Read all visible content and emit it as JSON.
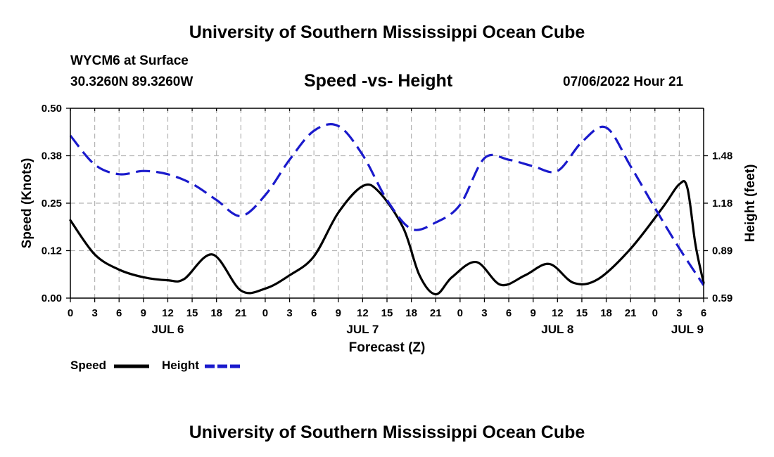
{
  "header": {
    "title": "University of Southern Mississippi Ocean Cube",
    "station": "WYCM6 at Surface",
    "coords": "30.3260N  89.3260W",
    "chart_title": "Speed -vs- Height",
    "datetime": "07/06/2022 Hour 21"
  },
  "legend": {
    "speed": "Speed",
    "height": "Height"
  },
  "footer": {
    "title": "University of Southern Mississippi Ocean Cube"
  },
  "colors": {
    "speed": "#000000",
    "height": "#1a1acc",
    "grid": "#b4b4b4"
  },
  "chart_data": {
    "type": "line",
    "title": "Speed -vs- Height",
    "xlabel": "Forecast (Z)",
    "ylabel": "Speed (Knots)",
    "y2label": "Height (feet)",
    "x_units": "hours from JUL 6 00Z",
    "xlim": [
      0,
      78
    ],
    "ylim": [
      0,
      0.5
    ],
    "y2lim": [
      0.59,
      1.77
    ],
    "x_ticks": [
      0,
      3,
      6,
      9,
      12,
      15,
      18,
      21,
      24,
      27,
      30,
      33,
      36,
      39,
      42,
      45,
      48,
      51,
      54,
      57,
      60,
      63,
      66,
      69,
      72,
      75,
      78
    ],
    "x_tick_labels": [
      "0",
      "3",
      "6",
      "9",
      "12",
      "15",
      "18",
      "21",
      "0",
      "3",
      "6",
      "9",
      "12",
      "15",
      "18",
      "21",
      "0",
      "3",
      "6",
      "9",
      "12",
      "15",
      "18",
      "21",
      "0",
      "3",
      "6"
    ],
    "date_labels": [
      {
        "x": 12,
        "label": "JUL 6"
      },
      {
        "x": 36,
        "label": "JUL 7"
      },
      {
        "x": 60,
        "label": "JUL 8"
      },
      {
        "x": 76,
        "label": "JUL 9"
      }
    ],
    "y_ticks": [
      0,
      0.125,
      0.25,
      0.375,
      0.5
    ],
    "y_tick_labels": [
      "0.00",
      "0.12",
      "0.25",
      "0.38",
      "0.50"
    ],
    "y2_ticks": [
      0.59,
      0.885,
      1.18,
      1.475
    ],
    "y2_tick_labels": [
      "0.59",
      "0.89",
      "1.18",
      "1.48"
    ],
    "grid": true,
    "series": [
      {
        "name": "Speed",
        "axis": "left",
        "style": "solid",
        "x": [
          0,
          3,
          6,
          9,
          12,
          14,
          17.5,
          21,
          24,
          27,
          30,
          33,
          36,
          38,
          41,
          43,
          45,
          47,
          50,
          53,
          56,
          59,
          62,
          65,
          69,
          73,
          75,
          76,
          77,
          78
        ],
        "y": [
          0.205,
          0.115,
          0.075,
          0.055,
          0.047,
          0.05,
          0.115,
          0.02,
          0.025,
          0.06,
          0.11,
          0.225,
          0.295,
          0.28,
          0.185,
          0.06,
          0.01,
          0.055,
          0.095,
          0.035,
          0.06,
          0.09,
          0.04,
          0.05,
          0.13,
          0.24,
          0.3,
          0.29,
          0.14,
          0.04
        ]
      },
      {
        "name": "Height",
        "axis": "right",
        "style": "dashed",
        "x": [
          0,
          3,
          6,
          9,
          12,
          15,
          18,
          21,
          24,
          27,
          30,
          33,
          36,
          39,
          42,
          45,
          48,
          51,
          54,
          57,
          60,
          63,
          66,
          69,
          72,
          75,
          78
        ],
        "y": [
          1.6,
          1.42,
          1.36,
          1.38,
          1.36,
          1.3,
          1.2,
          1.1,
          1.23,
          1.45,
          1.63,
          1.66,
          1.48,
          1.2,
          1.02,
          1.06,
          1.17,
          1.46,
          1.45,
          1.41,
          1.38,
          1.56,
          1.65,
          1.41,
          1.15,
          0.9,
          0.67
        ]
      }
    ]
  }
}
